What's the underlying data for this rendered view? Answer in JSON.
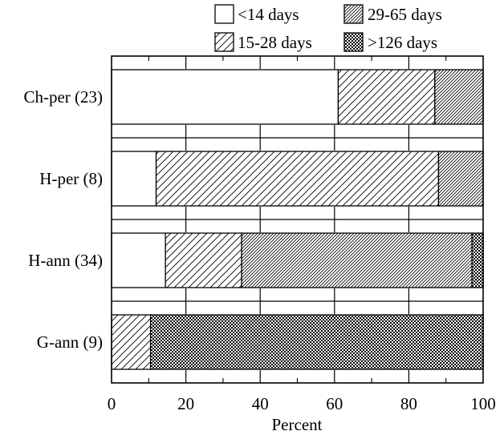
{
  "chart_data": {
    "type": "bar",
    "orientation": "horizontal",
    "stacked": true,
    "title": "",
    "xlabel": "Percent",
    "ylabel": "",
    "xlim": [
      0,
      100
    ],
    "x_ticks": [
      0,
      20,
      40,
      60,
      80,
      100
    ],
    "grid": false,
    "legend_position": "top-right",
    "categories": [
      "Ch-per (23)",
      "H-per (8)",
      "H-ann (34)",
      "G-ann (9)"
    ],
    "series": [
      {
        "name": "<14 days",
        "pattern": "blank",
        "values": [
          61,
          12,
          14.5,
          0
        ]
      },
      {
        "name": "15-28 days",
        "pattern": "sparse-hatch",
        "values": [
          26,
          76,
          20.5,
          10.5
        ]
      },
      {
        "name": "29-65 days",
        "pattern": "dense-hatch",
        "values": [
          13,
          12,
          62,
          0
        ]
      },
      {
        "name": ">126 days",
        "pattern": "checker",
        "values": [
          0,
          0,
          3,
          89.5
        ]
      }
    ]
  }
}
